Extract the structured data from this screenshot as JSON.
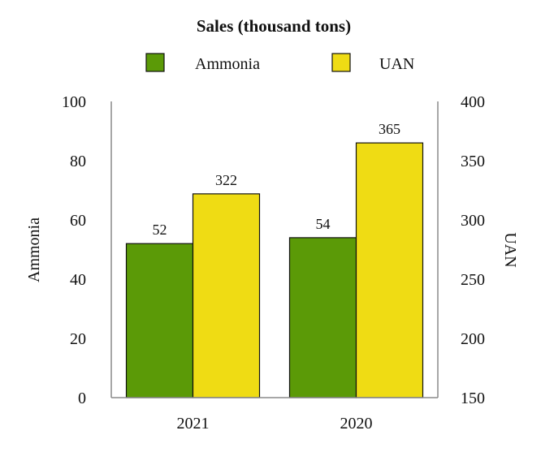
{
  "chart_data": {
    "type": "bar",
    "title": "Sales (thousand tons)",
    "categories": [
      "2021",
      "2020"
    ],
    "series": [
      {
        "name": "Ammonia",
        "values": [
          52,
          54
        ],
        "axis": "left",
        "color": "#5b9a07"
      },
      {
        "name": "UAN",
        "values": [
          322,
          365
        ],
        "axis": "right",
        "color": "#efdc14"
      }
    ],
    "ylabel": "Ammonia",
    "y2label": "UAN",
    "ylim": [
      0,
      100
    ],
    "y2lim": [
      150,
      400
    ],
    "yticks": [
      0,
      20,
      40,
      60,
      80,
      100
    ],
    "y2ticks": [
      150,
      200,
      250,
      300,
      350,
      400
    ],
    "legend_position": "top",
    "grid": false
  }
}
